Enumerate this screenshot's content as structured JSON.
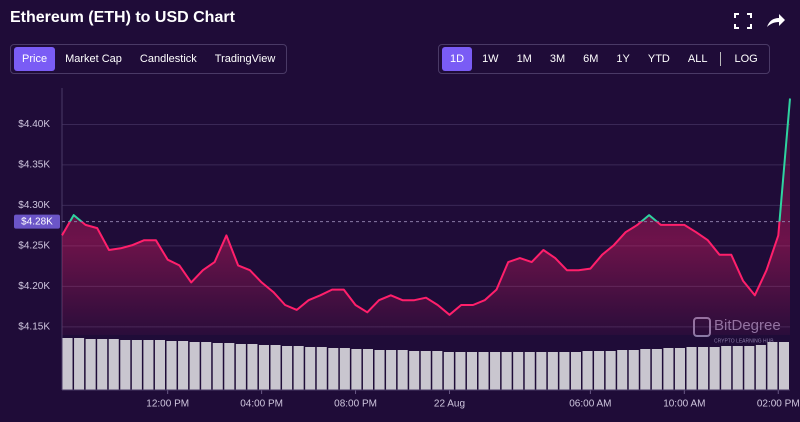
{
  "header": {
    "title": "Ethereum (ETH) to USD Chart"
  },
  "chart_tabs": [
    {
      "label": "Price",
      "active": true
    },
    {
      "label": "Market Cap",
      "active": false
    },
    {
      "label": "Candlestick",
      "active": false
    },
    {
      "label": "TradingView",
      "active": false
    }
  ],
  "range_tabs": [
    {
      "label": "1D",
      "active": true
    },
    {
      "label": "1W",
      "active": false
    },
    {
      "label": "1M",
      "active": false
    },
    {
      "label": "3M",
      "active": false
    },
    {
      "label": "6M",
      "active": false
    },
    {
      "label": "1Y",
      "active": false
    },
    {
      "label": "YTD",
      "active": false
    },
    {
      "label": "ALL",
      "active": false
    },
    {
      "label": "LOG",
      "active": false
    }
  ],
  "watermark": {
    "brand": "BitDegree",
    "tagline": "CRYPTO LEARNING HUB"
  },
  "chart_data": {
    "type": "line",
    "series": [
      {
        "name": "Price",
        "color": "#ff1f6b",
        "color_above": "#2ed3a0",
        "values": [
          4.263,
          4.288,
          4.276,
          4.272,
          4.245,
          4.247,
          4.251,
          4.257,
          4.257,
          4.233,
          4.226,
          4.205,
          4.22,
          4.23,
          4.263,
          4.226,
          4.22,
          4.205,
          4.193,
          4.177,
          4.171,
          4.183,
          4.189,
          4.196,
          4.196,
          4.177,
          4.168,
          4.183,
          4.189,
          4.183,
          4.183,
          4.186,
          4.177,
          4.165,
          4.177,
          4.177,
          4.183,
          4.196,
          4.23,
          4.235,
          4.23,
          4.245,
          4.235,
          4.22,
          4.22,
          4.222,
          4.239,
          4.251,
          4.267,
          4.276,
          4.288,
          4.276,
          4.276,
          4.276,
          4.267,
          4.257,
          4.239,
          4.239,
          4.207,
          4.189,
          4.22,
          4.263,
          4.432
        ]
      }
    ],
    "volume": {
      "color": "#c9c6cf",
      "ylim": [
        0,
        55
      ],
      "values": [
        52,
        52,
        51,
        51,
        51,
        50,
        50,
        50,
        50,
        49,
        49,
        48,
        48,
        47,
        47,
        46,
        46,
        45,
        45,
        44,
        44,
        43,
        43,
        42,
        42,
        41,
        41,
        40,
        40,
        40,
        39,
        39,
        39,
        38,
        38,
        38,
        38,
        38,
        38,
        38,
        38,
        38,
        38,
        38,
        38,
        39,
        39,
        39,
        40,
        40,
        41,
        41,
        42,
        42,
        43,
        43,
        43,
        44,
        44,
        44,
        45,
        48,
        48
      ]
    },
    "reference": {
      "value": 4.28,
      "label": "$4.28K"
    },
    "xlim": [
      0,
      62
    ],
    "xticks": [
      {
        "value": 9,
        "label": "12:00 PM"
      },
      {
        "value": 17,
        "label": "04:00 PM"
      },
      {
        "value": 25,
        "label": "08:00 PM"
      },
      {
        "value": 33,
        "label": "22 Aug"
      },
      {
        "value": 45,
        "label": "06:00 AM"
      },
      {
        "value": 53,
        "label": "10:00 AM"
      },
      {
        "value": 61,
        "label": "02:00 PM"
      }
    ],
    "ylim": [
      4.14,
      4.445
    ],
    "yticks": [
      {
        "value": 4.15,
        "label": "$4.15K"
      },
      {
        "value": 4.2,
        "label": "$4.20K"
      },
      {
        "value": 4.25,
        "label": "$4.25K"
      },
      {
        "value": 4.3,
        "label": "$4.30K"
      },
      {
        "value": 4.35,
        "label": "$4.35K"
      },
      {
        "value": 4.4,
        "label": "$4.40K"
      }
    ],
    "grid": true
  }
}
